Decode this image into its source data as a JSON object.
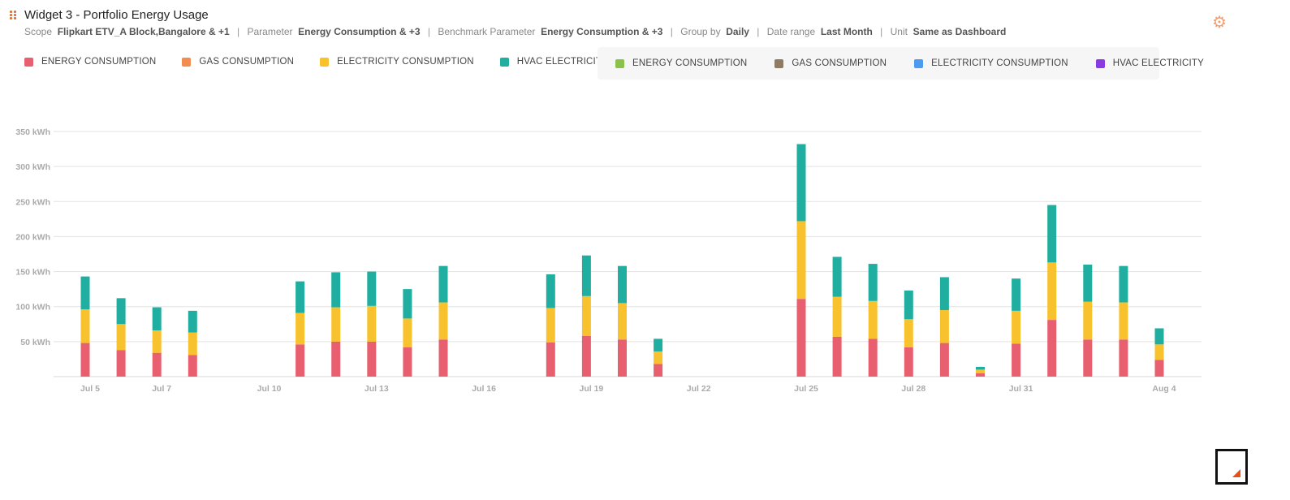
{
  "widget": {
    "title": "Widget 3 - Portfolio Energy Usage",
    "meta": {
      "scope_label": "Scope",
      "scope_value": "Flipkart ETV_A Block,Bangalore & +1",
      "parameter_label": "Parameter",
      "parameter_value": "Energy Consumption & +3",
      "benchmark_label": "Benchmark Parameter",
      "benchmark_value": "Energy Consumption & +3",
      "group_label": "Group by",
      "group_value": "Daily",
      "range_label": "Date range",
      "range_value": "Last Month",
      "unit_label": "Unit",
      "unit_value": "Same as Dashboard",
      "separator": "|"
    },
    "icons": {
      "drag": "drag-handle-icon",
      "settings": "gear-icon",
      "resize": "resize-handle-icon"
    }
  },
  "legend_primary": [
    {
      "label": "ENERGY CONSUMPTION",
      "color": "#e8606f"
    },
    {
      "label": "GAS CONSUMPTION",
      "color": "#f28c50"
    },
    {
      "label": "ELECTRICITY CONSUMPTION",
      "color": "#f8c22e"
    },
    {
      "label": "HVAC ELECTRICITY",
      "color": "#1fae9f"
    }
  ],
  "legend_benchmark": [
    {
      "label": "ENERGY CONSUMPTION",
      "color": "#8bc34a"
    },
    {
      "label": "GAS CONSUMPTION",
      "color": "#8d7b63"
    },
    {
      "label": "ELECTRICITY CONSUMPTION",
      "color": "#4b9cf0"
    },
    {
      "label": "HVAC ELECTRICITY",
      "color": "#8a3ae0"
    }
  ],
  "chart_data": {
    "type": "bar",
    "stacked": true,
    "title": "",
    "xlabel": "",
    "ylabel": "",
    "y_unit": "kWh",
    "ylim": [
      0,
      350
    ],
    "yticks": [
      50,
      100,
      150,
      200,
      250,
      300,
      350
    ],
    "ytick_labels": [
      "50 kWh",
      "100 kWh",
      "150 kWh",
      "200 kWh",
      "250 kWh",
      "300 kWh",
      "350 kWh"
    ],
    "grid": true,
    "x_tick_labels": [
      "Jul 5",
      "Jul 7",
      "Jul 10",
      "Jul 13",
      "Jul 16",
      "Jul 19",
      "Jul 22",
      "Jul 25",
      "Jul 28",
      "Jul 31",
      "Aug 4"
    ],
    "dates": [
      "Jul 5",
      "Jul 6",
      "Jul 7",
      "Jul 8",
      "Jul 9",
      "Jul 10",
      "Jul 11",
      "Jul 12",
      "Jul 13",
      "Jul 14",
      "Jul 15",
      "Jul 16",
      "Jul 17",
      "Jul 18",
      "Jul 19",
      "Jul 20",
      "Jul 21",
      "Jul 22",
      "Jul 23",
      "Jul 24",
      "Jul 25",
      "Jul 26",
      "Jul 27",
      "Jul 28",
      "Jul 29",
      "Jul 30",
      "Jul 31",
      "Aug 1",
      "Aug 2",
      "Aug 3",
      "Aug 4"
    ],
    "series": [
      {
        "name": "ENERGY CONSUMPTION",
        "color": "#e8606f",
        "values": [
          48,
          38,
          34,
          31,
          0,
          0,
          46,
          50,
          50,
          42,
          53,
          0,
          0,
          49,
          58,
          53,
          18,
          0,
          0,
          0,
          111,
          57,
          54,
          42,
          48,
          5,
          47,
          81,
          53,
          53,
          24
        ]
      },
      {
        "name": "GAS CONSUMPTION",
        "color": "#f28c50",
        "values": [
          0,
          0,
          0,
          0,
          0,
          0,
          0,
          0,
          0,
          0,
          0,
          0,
          0,
          0,
          0,
          0,
          0,
          0,
          0,
          0,
          0,
          0,
          0,
          0,
          0,
          0,
          0,
          0,
          0,
          0,
          0
        ]
      },
      {
        "name": "ELECTRICITY CONSUMPTION",
        "color": "#f8c22e",
        "values": [
          48,
          37,
          32,
          32,
          0,
          0,
          45,
          49,
          51,
          41,
          53,
          0,
          0,
          49,
          57,
          52,
          18,
          0,
          0,
          0,
          111,
          57,
          54,
          40,
          47,
          5,
          47,
          82,
          54,
          53,
          22
        ]
      },
      {
        "name": "HVAC ELECTRICITY",
        "color": "#1fae9f",
        "values": [
          47,
          37,
          33,
          31,
          0,
          0,
          45,
          50,
          49,
          42,
          52,
          0,
          0,
          48,
          58,
          53,
          18,
          0,
          0,
          0,
          110,
          57,
          53,
          41,
          47,
          4,
          46,
          82,
          53,
          52,
          23
        ]
      }
    ]
  }
}
